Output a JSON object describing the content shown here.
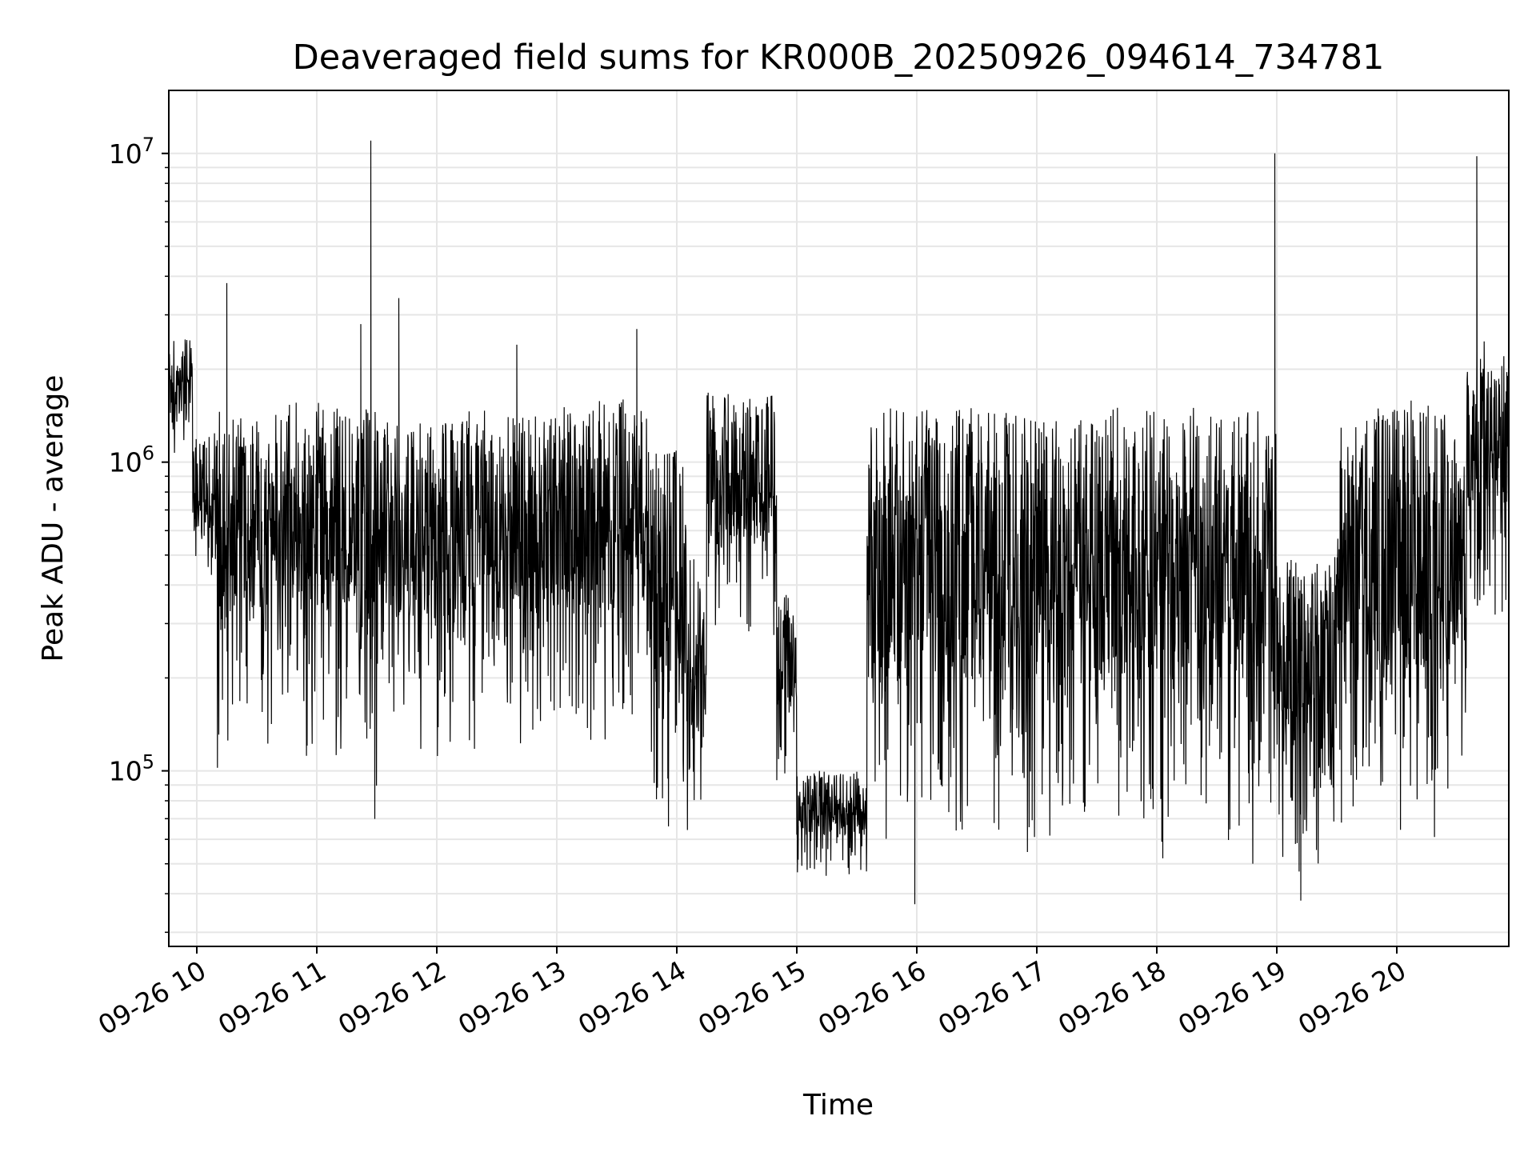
{
  "chart_data": {
    "type": "line",
    "title": "Deaveraged field sums for KR000B_20250926_094614_734781",
    "xlabel": "Time",
    "ylabel": "Peak ADU - average",
    "yscale": "log",
    "grid": true,
    "line_color": "#000000",
    "grid_color": "#e6e6e6",
    "xlim": [
      "2025-09-26 09:46",
      "2025-09-26 20:56"
    ],
    "ylim": [
      27000,
      16000000
    ],
    "x_ticks": [
      {
        "value": "2025-09-26 10:00",
        "label": "09-26 10"
      },
      {
        "value": "2025-09-26 11:00",
        "label": "09-26 11"
      },
      {
        "value": "2025-09-26 12:00",
        "label": "09-26 12"
      },
      {
        "value": "2025-09-26 13:00",
        "label": "09-26 13"
      },
      {
        "value": "2025-09-26 14:00",
        "label": "09-26 14"
      },
      {
        "value": "2025-09-26 15:00",
        "label": "09-26 15"
      },
      {
        "value": "2025-09-26 16:00",
        "label": "09-26 16"
      },
      {
        "value": "2025-09-26 17:00",
        "label": "09-26 17"
      },
      {
        "value": "2025-09-26 18:00",
        "label": "09-26 18"
      },
      {
        "value": "2025-09-26 19:00",
        "label": "09-26 19"
      },
      {
        "value": "2025-09-26 20:00",
        "label": "09-26 20"
      }
    ],
    "y_ticks": [
      {
        "value": 100000,
        "base": "10",
        "exp": "5"
      },
      {
        "value": 1000000,
        "base": "10",
        "exp": "6"
      },
      {
        "value": 10000000,
        "base": "10",
        "exp": "7"
      }
    ],
    "segments": [
      {
        "start": "2025-09-26 09:46",
        "end": "2025-09-26 09:58",
        "low": 1000000,
        "high": 2500000
      },
      {
        "start": "2025-09-26 09:58",
        "end": "2025-09-26 10:10",
        "low": 350000,
        "high": 1300000
      },
      {
        "start": "2025-09-26 10:10",
        "end": "2025-09-26 10:45",
        "low": 90000,
        "high": 1500000
      },
      {
        "start": "2025-09-26 10:45",
        "end": "2025-09-26 11:20",
        "low": 110000,
        "high": 1600000
      },
      {
        "start": "2025-09-26 11:20",
        "end": "2025-09-26 11:30",
        "low": 65000,
        "high": 1500000
      },
      {
        "start": "2025-09-26 11:30",
        "end": "2025-09-26 12:15",
        "low": 110000,
        "high": 1400000
      },
      {
        "start": "2025-09-26 12:15",
        "end": "2025-09-26 13:00",
        "low": 110000,
        "high": 1500000
      },
      {
        "start": "2025-09-26 13:00",
        "end": "2025-09-26 13:45",
        "low": 110000,
        "high": 1600000
      },
      {
        "start": "2025-09-26 13:45",
        "end": "2025-09-26 14:05",
        "low": 60000,
        "high": 1100000
      },
      {
        "start": "2025-09-26 14:05",
        "end": "2025-09-26 14:15",
        "low": 60000,
        "high": 500000
      },
      {
        "start": "2025-09-26 14:15",
        "end": "2025-09-26 14:50",
        "low": 250000,
        "high": 1700000
      },
      {
        "start": "2025-09-26 14:50",
        "end": "2025-09-26 15:00",
        "low": 80000,
        "high": 400000
      },
      {
        "start": "2025-09-26 15:00",
        "end": "2025-09-26 15:35",
        "low": 45000,
        "high": 100000
      },
      {
        "start": "2025-09-26 15:35",
        "end": "2025-09-26 16:15",
        "low": 45000,
        "high": 1500000
      },
      {
        "start": "2025-09-26 16:15",
        "end": "2025-09-26 19:00",
        "low": 50000,
        "high": 1500000
      },
      {
        "start": "2025-09-26 19:00",
        "end": "2025-09-26 19:30",
        "low": 45000,
        "high": 500000
      },
      {
        "start": "2025-09-26 19:30",
        "end": "2025-09-26 20:35",
        "low": 55000,
        "high": 1600000
      },
      {
        "start": "2025-09-26 20:35",
        "end": "2025-09-26 20:56",
        "low": 300000,
        "high": 2500000
      }
    ],
    "spikes": [
      {
        "x": "2025-09-26 10:15",
        "y": 3800000
      },
      {
        "x": "2025-09-26 11:22",
        "y": 2800000
      },
      {
        "x": "2025-09-26 11:27",
        "y": 11000000
      },
      {
        "x": "2025-09-26 11:41",
        "y": 3400000
      },
      {
        "x": "2025-09-26 12:40",
        "y": 2400000
      },
      {
        "x": "2025-09-26 13:40",
        "y": 2700000
      },
      {
        "x": "2025-09-26 18:59",
        "y": 10000000
      },
      {
        "x": "2025-09-26 20:40",
        "y": 9800000
      },
      {
        "x": "2025-09-26 15:59",
        "y": 37000
      },
      {
        "x": "2025-09-26 19:12",
        "y": 38000
      }
    ]
  }
}
